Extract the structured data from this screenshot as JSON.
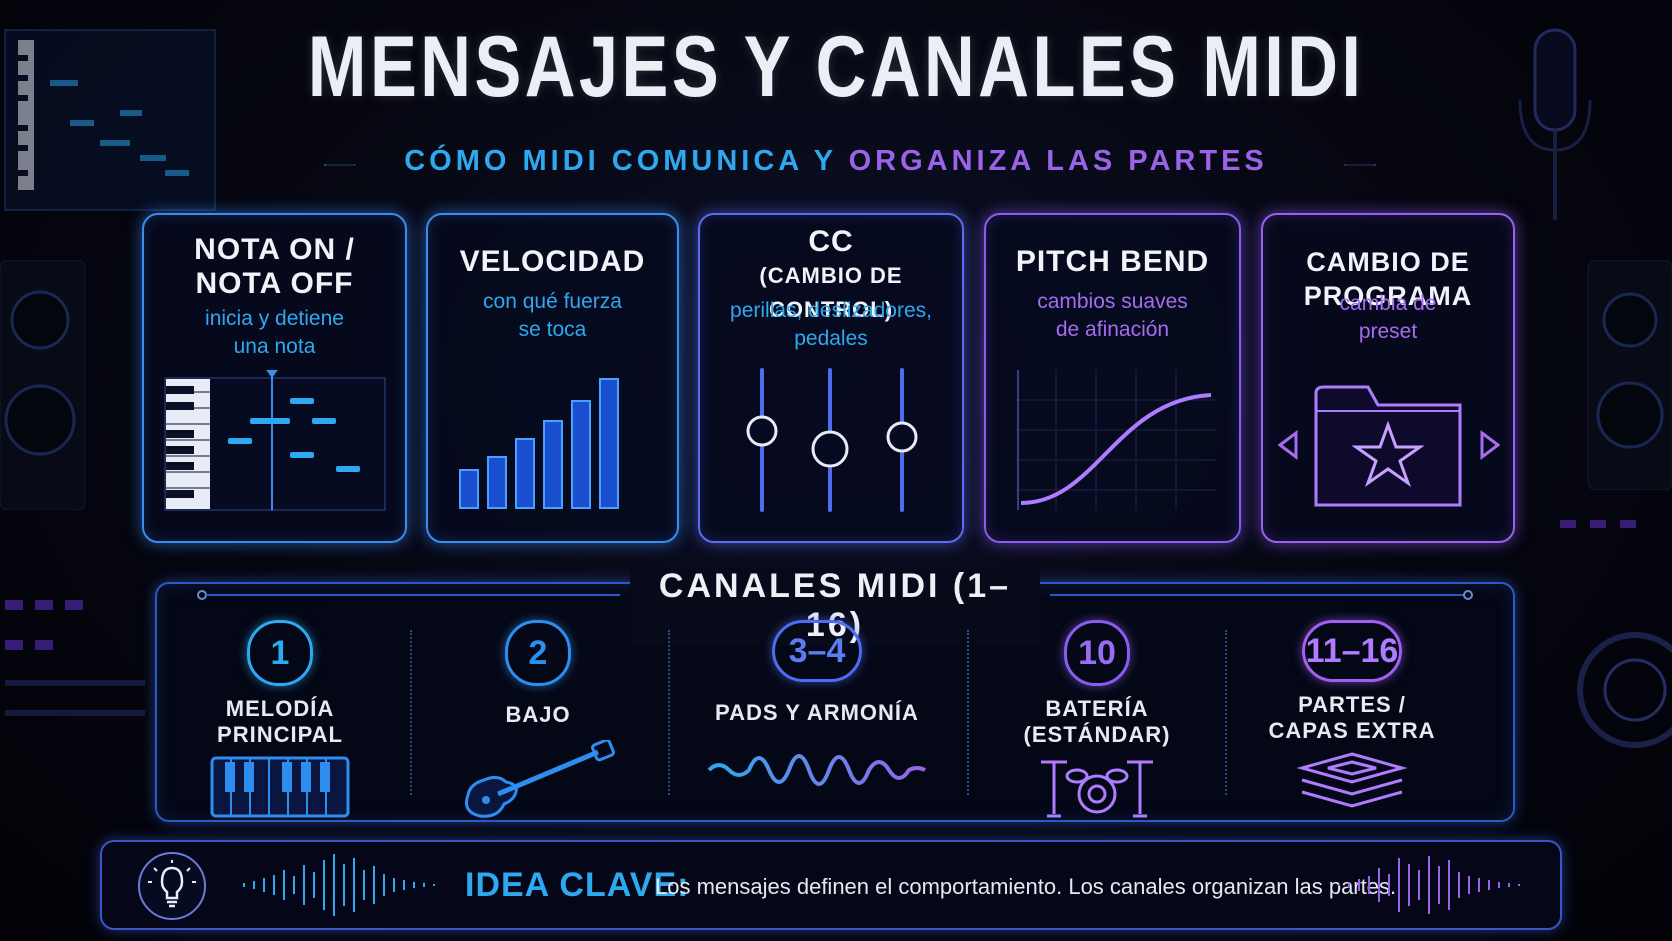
{
  "header": {
    "title": "MENSAJES Y CANALES MIDI",
    "subtitle_part1": "CÓMO MIDI COMUNICA Y",
    "subtitle_part2": "ORGANIZA LAS PARTES"
  },
  "message_cards": [
    {
      "title_line1": "NOTA ON /",
      "title_line2": "NOTA OFF",
      "desc_line1": "inicia y detiene",
      "desc_line2": "una nota",
      "icon": "piano-roll-icon"
    },
    {
      "title_line1": "VELOCIDAD",
      "desc_line1": "con qué fuerza",
      "desc_line2": "se toca",
      "icon": "velocity-bars-icon"
    },
    {
      "title_line1": "CC",
      "title_line2": "(CAMBIO DE CONTROL)",
      "desc_line1": "perillas, deslizadores,",
      "desc_line2": "pedales",
      "icon": "sliders-icon"
    },
    {
      "title_line1": "PITCH BEND",
      "desc_line1": "cambios suaves",
      "desc_line2": "de afinación",
      "icon": "pitch-curve-icon"
    },
    {
      "title_line1": "CAMBIO DE PROGRAMA",
      "desc_line1": "cambia de",
      "desc_line2": "preset",
      "icon": "preset-folder-icon"
    }
  ],
  "channels": {
    "heading": "CANALES MIDI (1–16)",
    "items": [
      {
        "number": "1",
        "label_line1": "MELODÍA",
        "label_line2": "PRINCIPAL",
        "icon": "keyboard-icon",
        "color": "#2ea8ee"
      },
      {
        "number": "2",
        "label_line1": "BAJO",
        "label_line2": "",
        "icon": "bass-guitar-icon",
        "color": "#2e8ef0"
      },
      {
        "number": "3–4",
        "label_line1": "PADS Y ARMONÍA",
        "label_line2": "",
        "icon": "waveform-icon",
        "color": "#4d6cf0"
      },
      {
        "number": "10",
        "label_line1": "BATERÍA",
        "label_line2": "(ESTÁNDAR)",
        "icon": "drum-kit-icon",
        "color": "#8a5cf0"
      },
      {
        "number": "11–16",
        "label_line1": "PARTES /",
        "label_line2": "CAPAS EXTRA",
        "icon": "layers-icon",
        "color": "#a160f0"
      }
    ]
  },
  "key_idea": {
    "label": "IDEA CLAVE:",
    "text": "Los mensajes definen el comportamiento. Los canales organizan las partes.",
    "icon": "lightbulb-icon"
  },
  "colors": {
    "accent_blue": "#2ea8ee",
    "accent_purple": "#9a63e8",
    "background": "#05060f"
  }
}
